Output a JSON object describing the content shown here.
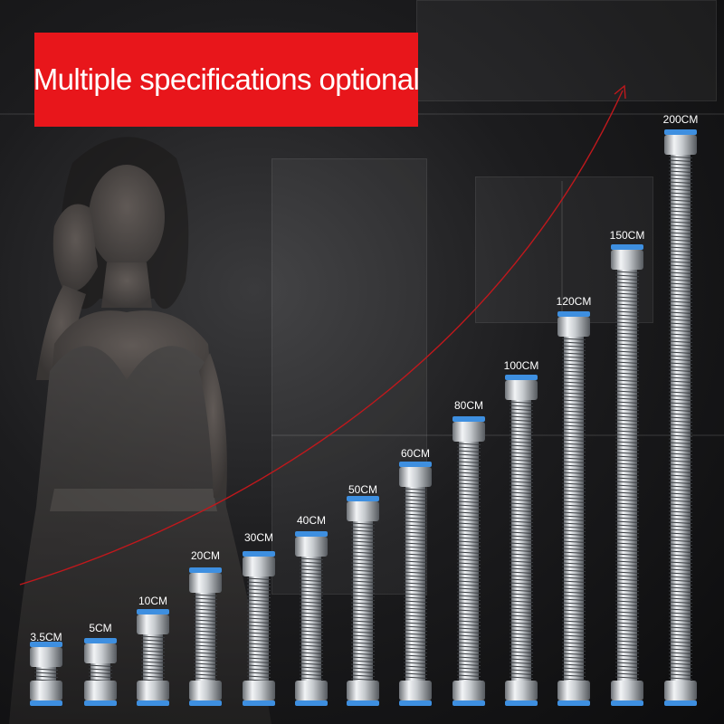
{
  "banner": {
    "text": "Multiple specifications optional",
    "background_color": "#e8161b",
    "text_color": "#ffffff"
  },
  "arrow_color": "#c0181c",
  "hoses": [
    {
      "label": "3.5CM"
    },
    {
      "label": "5CM"
    },
    {
      "label": "10CM"
    },
    {
      "label": "20CM"
    },
    {
      "label": "30CM"
    },
    {
      "label": "40CM"
    },
    {
      "label": "50CM"
    },
    {
      "label": "60CM"
    },
    {
      "label": "80CM"
    },
    {
      "label": "100CM"
    },
    {
      "label": "120CM"
    },
    {
      "label": "150CM"
    },
    {
      "label": "200CM"
    }
  ]
}
